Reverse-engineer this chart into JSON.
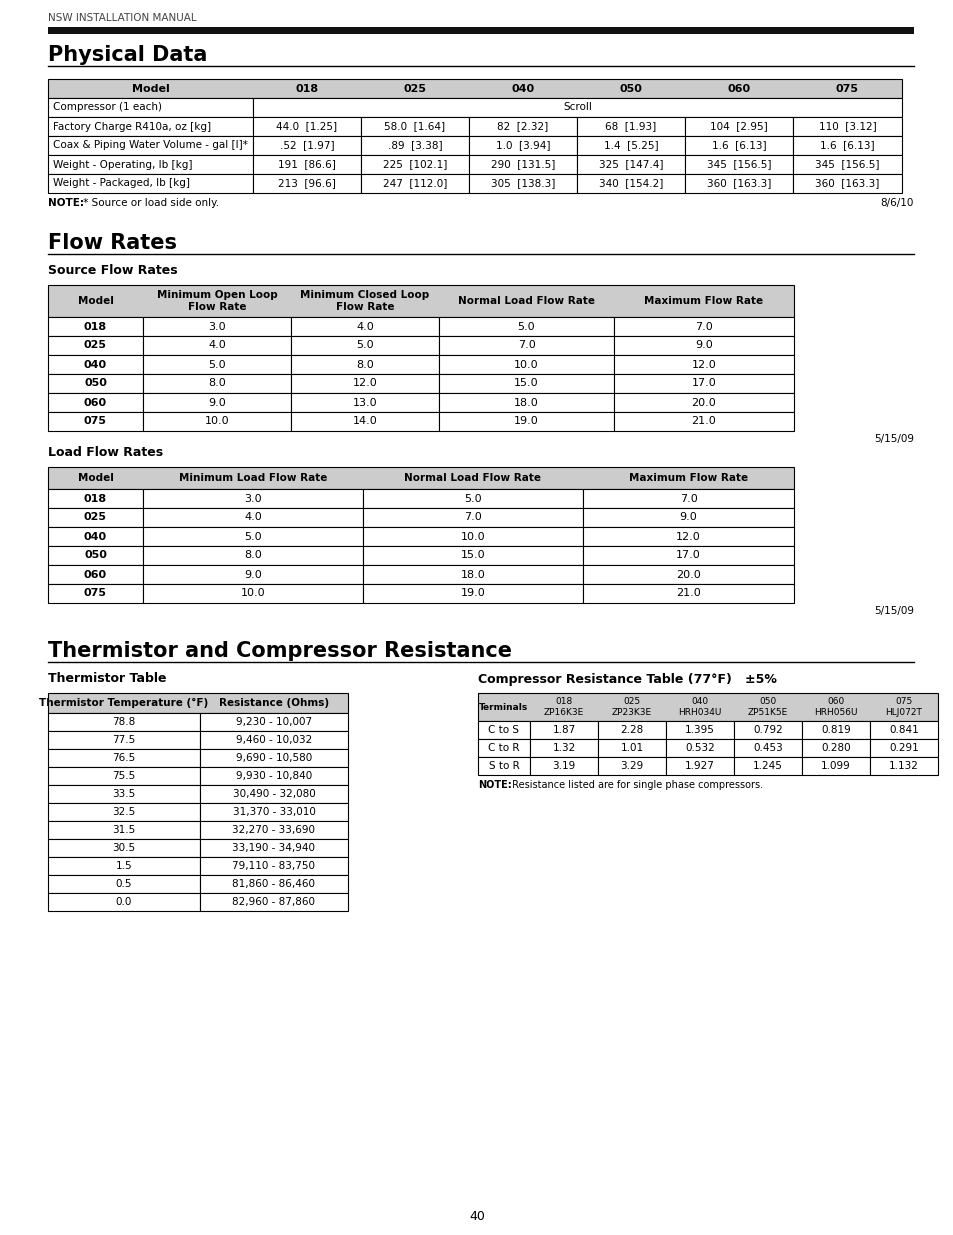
{
  "page_header": "NSW INSTALLATION MANUAL",
  "section1_title": "Physical Data",
  "physical_data": {
    "headers": [
      "Model",
      "018",
      "025",
      "040",
      "050",
      "060",
      "075"
    ],
    "rows": [
      [
        "Compressor (1 each)",
        "Scroll",
        "",
        "",
        "",
        "",
        ""
      ],
      [
        "Factory Charge R410a, oz [kg]",
        "44.0  [1.25]",
        "58.0  [1.64]",
        "82  [2.32]",
        "68  [1.93]",
        "104  [2.95]",
        "110  [3.12]"
      ],
      [
        "Coax & Piping Water Volume - gal [l]*",
        ".52  [1.97]",
        ".89  [3.38]",
        "1.0  [3.94]",
        "1.4  [5.25]",
        "1.6  [6.13]",
        "1.6  [6.13]"
      ],
      [
        "Weight - Operating, lb [kg]",
        "191  [86.6]",
        "225  [102.1]",
        "290  [131.5]",
        "325  [147.4]",
        "345  [156.5]",
        "345  [156.5]"
      ],
      [
        "Weight - Packaged, lb [kg]",
        "213  [96.6]",
        "247  [112.0]",
        "305  [138.3]",
        "340  [154.2]",
        "360  [163.3]",
        "360  [163.3]"
      ]
    ],
    "note_bold": "NOTE:",
    "note_rest": " * Source or load side only.",
    "date": "8/6/10"
  },
  "section2_title": "Flow Rates",
  "source_flow_title": "Source Flow Rates",
  "source_flow_headers": [
    "Model",
    "Minimum Open Loop\nFlow Rate",
    "Minimum Closed Loop\nFlow Rate",
    "Normal Load Flow Rate",
    "Maximum Flow Rate"
  ],
  "source_flow_rows": [
    [
      "018",
      "3.0",
      "4.0",
      "5.0",
      "7.0"
    ],
    [
      "025",
      "4.0",
      "5.0",
      "7.0",
      "9.0"
    ],
    [
      "040",
      "5.0",
      "8.0",
      "10.0",
      "12.0"
    ],
    [
      "050",
      "8.0",
      "12.0",
      "15.0",
      "17.0"
    ],
    [
      "060",
      "9.0",
      "13.0",
      "18.0",
      "20.0"
    ],
    [
      "075",
      "10.0",
      "14.0",
      "19.0",
      "21.0"
    ]
  ],
  "source_flow_date": "5/15/09",
  "load_flow_title": "Load Flow Rates",
  "load_flow_headers": [
    "Model",
    "Minimum Load Flow Rate",
    "Normal Load Flow Rate",
    "Maximum Flow Rate"
  ],
  "load_flow_rows": [
    [
      "018",
      "3.0",
      "5.0",
      "7.0"
    ],
    [
      "025",
      "4.0",
      "7.0",
      "9.0"
    ],
    [
      "040",
      "5.0",
      "10.0",
      "12.0"
    ],
    [
      "050",
      "8.0",
      "15.0",
      "17.0"
    ],
    [
      "060",
      "9.0",
      "18.0",
      "20.0"
    ],
    [
      "075",
      "10.0",
      "19.0",
      "21.0"
    ]
  ],
  "load_flow_date": "5/15/09",
  "section3_title": "Thermistor and Compressor Resistance",
  "thermistor_title": "Thermistor Table",
  "thermistor_headers": [
    "Thermistor Temperature (°F)",
    "Resistance (Ohms)"
  ],
  "thermistor_rows": [
    [
      "78.8",
      "9,230 - 10,007"
    ],
    [
      "77.5",
      "9,460 - 10,032"
    ],
    [
      "76.5",
      "9,690 - 10,580"
    ],
    [
      "75.5",
      "9,930 - 10,840"
    ],
    [
      "33.5",
      "30,490 - 32,080"
    ],
    [
      "32.5",
      "31,370 - 33,010"
    ],
    [
      "31.5",
      "32,270 - 33,690"
    ],
    [
      "30.5",
      "33,190 - 34,940"
    ],
    [
      "1.5",
      "79,110 - 83,750"
    ],
    [
      "0.5",
      "81,860 - 86,460"
    ],
    [
      "0.0",
      "82,960 - 87,860"
    ]
  ],
  "compressor_title": "Compressor Resistance Table (77°F)   ±5%",
  "compressor_headers": [
    "Terminals",
    "018\nZP16K3E",
    "025\nZP23K3E",
    "040\nHRH034U",
    "050\nZP51K5E",
    "060\nHRH056U",
    "075\nHLJ072T"
  ],
  "compressor_rows": [
    [
      "C to S",
      "1.87",
      "2.28",
      "1.395",
      "0.792",
      "0.819",
      "0.841"
    ],
    [
      "C to R",
      "1.32",
      "1.01",
      "0.532",
      "0.453",
      "0.280",
      "0.291"
    ],
    [
      "S to R",
      "3.19",
      "3.29",
      "1.927",
      "1.245",
      "1.099",
      "1.132"
    ]
  ],
  "compressor_note_bold": "NOTE:",
  "compressor_note_rest": " Resistance listed are for single phase compressors.",
  "page_number": "40",
  "bg_color": "#ffffff",
  "header_bar_color": "#111111",
  "table_header_bg": "#cccccc",
  "table_border_color": "#000000"
}
